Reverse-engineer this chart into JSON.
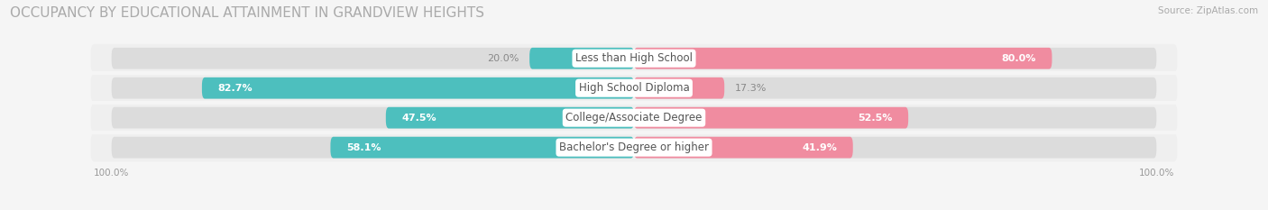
{
  "title": "OCCUPANCY BY EDUCATIONAL ATTAINMENT IN GRANDVIEW HEIGHTS",
  "source": "Source: ZipAtlas.com",
  "categories": [
    "Less than High School",
    "High School Diploma",
    "College/Associate Degree",
    "Bachelor's Degree or higher"
  ],
  "owner_pct": [
    20.0,
    82.7,
    47.5,
    58.1
  ],
  "renter_pct": [
    80.0,
    17.3,
    52.5,
    41.9
  ],
  "owner_color": "#4dbfbe",
  "renter_color": "#f08ca0",
  "row_bg_color": "#efefef",
  "bg_color": "#f5f5f5",
  "bar_bg_color": "#dcdcdc",
  "title_color": "#aaaaaa",
  "source_color": "#aaaaaa",
  "label_color": "#555555",
  "value_color": "#888888",
  "legend_label_color": "#666666",
  "title_fontsize": 11,
  "label_fontsize": 8.5,
  "source_fontsize": 7.5,
  "legend_fontsize": 8.5,
  "value_fontsize": 8,
  "axis_tick_fontsize": 7.5
}
